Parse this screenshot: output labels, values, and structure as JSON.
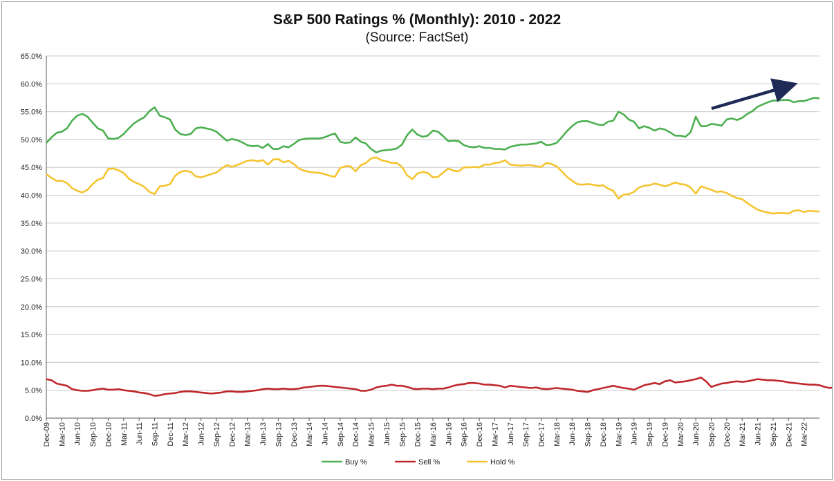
{
  "chart_data": {
    "type": "line",
    "title": "S&P 500 Ratings % (Monthly):  2010 - 2022",
    "subtitle": "(Source:  FactSet)",
    "xlabel": "",
    "ylabel": "",
    "ylim": [
      0,
      65
    ],
    "y_ticks": [
      "0.0%",
      "5.0%",
      "10.0%",
      "15.0%",
      "20.0%",
      "25.0%",
      "30.0%",
      "35.0%",
      "40.0%",
      "45.0%",
      "50.0%",
      "55.0%",
      "60.0%",
      "65.0%"
    ],
    "x_tick_labels": [
      "Dec-09",
      "Mar-10",
      "Jun-10",
      "Sep-10",
      "Dec-10",
      "Mar-11",
      "Jun-11",
      "Sep-11",
      "Dec-11",
      "Mar-12",
      "Jun-12",
      "Sep-12",
      "Dec-12",
      "Mar-13",
      "Jun-13",
      "Sep-13",
      "Dec-13",
      "Mar-14",
      "Jun-14",
      "Sep-14",
      "Dec-14",
      "Mar-15",
      "Jun-15",
      "Sep-15",
      "Dec-15",
      "Mar-16",
      "Jun-16",
      "Sep-16",
      "Dec-16",
      "Mar-17",
      "Jun-17",
      "Sep-17",
      "Dec-17",
      "Mar-18",
      "Jun-18",
      "Sep-18",
      "Dec-18",
      "Mar-19",
      "Jun-19",
      "Sep-19",
      "Dec-19",
      "Mar-20",
      "Jun-20",
      "Sep-20",
      "Dec-20",
      "Mar-21",
      "Jun-21",
      "Sep-21",
      "Dec-21",
      "Mar-22"
    ],
    "grid": true,
    "legend_position": "bottom",
    "series": [
      {
        "name": "Buy %",
        "color": "#4caf50",
        "values": [
          49.4,
          50.4,
          51.2,
          51.4,
          52.0,
          53.4,
          54.3,
          54.6,
          54.1,
          53.0,
          52.0,
          51.6,
          50.2,
          50.1,
          50.3,
          51.0,
          52.0,
          52.9,
          53.5,
          54.0,
          55.1,
          55.8,
          54.3,
          54.0,
          53.6,
          51.8,
          51.0,
          50.8,
          51.0,
          52.0,
          52.2,
          52.0,
          51.8,
          51.4,
          50.6,
          49.8,
          50.1,
          49.9,
          49.5,
          49.0,
          48.8,
          48.9,
          48.5,
          49.2,
          48.3,
          48.3,
          48.8,
          48.6,
          49.2,
          49.9,
          50.1,
          50.2,
          50.2,
          50.2,
          50.4,
          50.8,
          51.1,
          49.6,
          49.4,
          49.5,
          50.4,
          49.6,
          49.3,
          48.3,
          47.7,
          48.0,
          48.1,
          48.2,
          48.4,
          49.1,
          50.8,
          51.8,
          50.9,
          50.5,
          50.7,
          51.6,
          51.4,
          50.6,
          49.7,
          49.8,
          49.7,
          49.0,
          48.7,
          48.6,
          48.8,
          48.5,
          48.5,
          48.3,
          48.3,
          48.2,
          48.7,
          48.9,
          49.1,
          49.1,
          49.2,
          49.3,
          49.6,
          49.0,
          49.1,
          49.4,
          50.4,
          51.5,
          52.4,
          53.1,
          53.3,
          53.3,
          53.0,
          52.7,
          52.6,
          53.2,
          53.4,
          55.0,
          54.5,
          53.6,
          53.2,
          52.0,
          52.4,
          52.1,
          51.6,
          52.0,
          51.8,
          51.3,
          50.7,
          50.7,
          50.5,
          51.3,
          54.1,
          52.4,
          52.4,
          52.8,
          52.7,
          52.5,
          53.6,
          53.8,
          53.5,
          53.9,
          54.6,
          55.1,
          55.9,
          56.3,
          56.7,
          57.0,
          57.0,
          57.1,
          57.1,
          56.7,
          56.9,
          56.9,
          57.2,
          57.5,
          57.4
        ]
      },
      {
        "name": "Sell %",
        "color": "#c0282d",
        "values": [
          7.0,
          6.8,
          6.2,
          6.0,
          5.8,
          5.2,
          5.0,
          4.9,
          4.9,
          5.0,
          5.2,
          5.3,
          5.1,
          5.1,
          5.2,
          5.0,
          4.9,
          4.8,
          4.6,
          4.5,
          4.3,
          4.0,
          4.1,
          4.3,
          4.4,
          4.5,
          4.7,
          4.8,
          4.8,
          4.7,
          4.6,
          4.5,
          4.4,
          4.5,
          4.6,
          4.8,
          4.8,
          4.7,
          4.7,
          4.8,
          4.9,
          5.0,
          5.2,
          5.3,
          5.2,
          5.2,
          5.3,
          5.2,
          5.2,
          5.3,
          5.5,
          5.6,
          5.7,
          5.8,
          5.8,
          5.7,
          5.6,
          5.5,
          5.4,
          5.3,
          5.2,
          4.9,
          4.9,
          5.1,
          5.5,
          5.7,
          5.8,
          6.0,
          5.8,
          5.8,
          5.6,
          5.3,
          5.2,
          5.3,
          5.3,
          5.2,
          5.3,
          5.3,
          5.5,
          5.8,
          6.0,
          6.1,
          6.3,
          6.3,
          6.2,
          6.0,
          6.0,
          5.9,
          5.8,
          5.5,
          5.8,
          5.7,
          5.6,
          5.5,
          5.4,
          5.5,
          5.3,
          5.2,
          5.3,
          5.4,
          5.3,
          5.2,
          5.1,
          4.9,
          4.8,
          4.7,
          5.0,
          5.2,
          5.4,
          5.6,
          5.8,
          5.6,
          5.4,
          5.3,
          5.1,
          5.5,
          5.9,
          6.1,
          6.3,
          6.1,
          6.6,
          6.8,
          6.4,
          6.5,
          6.6,
          6.8,
          7.0,
          7.3,
          6.6,
          5.6,
          5.9,
          6.2,
          6.3,
          6.5,
          6.6,
          6.5,
          6.6,
          6.8,
          7.0,
          6.9,
          6.8,
          6.8,
          6.7,
          6.6,
          6.4,
          6.3,
          6.2,
          6.1,
          6.0,
          6.0,
          5.9,
          5.6,
          5.4,
          5.6
        ]
      },
      {
        "name": "Hold %",
        "color": "#f4c430",
        "values": [
          43.8,
          43.1,
          42.6,
          42.6,
          42.2,
          41.3,
          40.8,
          40.5,
          41.0,
          42.0,
          42.8,
          43.1,
          44.7,
          44.8,
          44.5,
          44.0,
          43.0,
          42.4,
          42.0,
          41.5,
          40.6,
          40.2,
          41.6,
          41.7,
          42.0,
          43.5,
          44.2,
          44.4,
          44.2,
          43.4,
          43.2,
          43.5,
          43.8,
          44.1,
          44.8,
          45.4,
          45.1,
          45.4,
          45.8,
          46.2,
          46.3,
          46.1,
          46.3,
          45.5,
          46.4,
          46.5,
          45.9,
          46.2,
          45.6,
          44.8,
          44.4,
          44.2,
          44.1,
          44.0,
          43.8,
          43.5,
          43.3,
          44.9,
          45.2,
          45.2,
          44.3,
          45.4,
          45.8,
          46.6,
          46.8,
          46.3,
          46.1,
          45.8,
          45.8,
          45.1,
          43.6,
          42.9,
          43.9,
          44.2,
          44.0,
          43.2,
          43.3,
          44.1,
          44.8,
          44.4,
          44.3,
          45.0,
          45.0,
          45.1,
          45.0,
          45.5,
          45.5,
          45.8,
          45.9,
          46.3,
          45.5,
          45.4,
          45.3,
          45.4,
          45.4,
          45.2,
          45.1,
          45.8,
          45.6,
          45.2,
          44.3,
          43.3,
          42.6,
          42.0,
          41.9,
          42.0,
          41.9,
          41.7,
          41.8,
          41.2,
          40.8,
          39.4,
          40.1,
          40.2,
          40.6,
          41.4,
          41.7,
          41.8,
          42.1,
          41.9,
          41.6,
          41.9,
          42.3,
          42.0,
          41.9,
          41.4,
          40.3,
          41.6,
          41.3,
          41.0,
          40.6,
          40.7,
          40.4,
          39.9,
          39.5,
          39.3,
          38.6,
          38.0,
          37.4,
          37.1,
          36.9,
          36.7,
          36.8,
          36.8,
          36.7,
          37.2,
          37.3,
          37.0,
          37.2,
          37.1,
          37.1
        ]
      }
    ]
  },
  "colors": {
    "grid": "#c8c8c8",
    "axis": "#555555",
    "arrow": "#1f2a56"
  },
  "annotation": {
    "type": "trend-arrow",
    "points_to": "up-right"
  }
}
